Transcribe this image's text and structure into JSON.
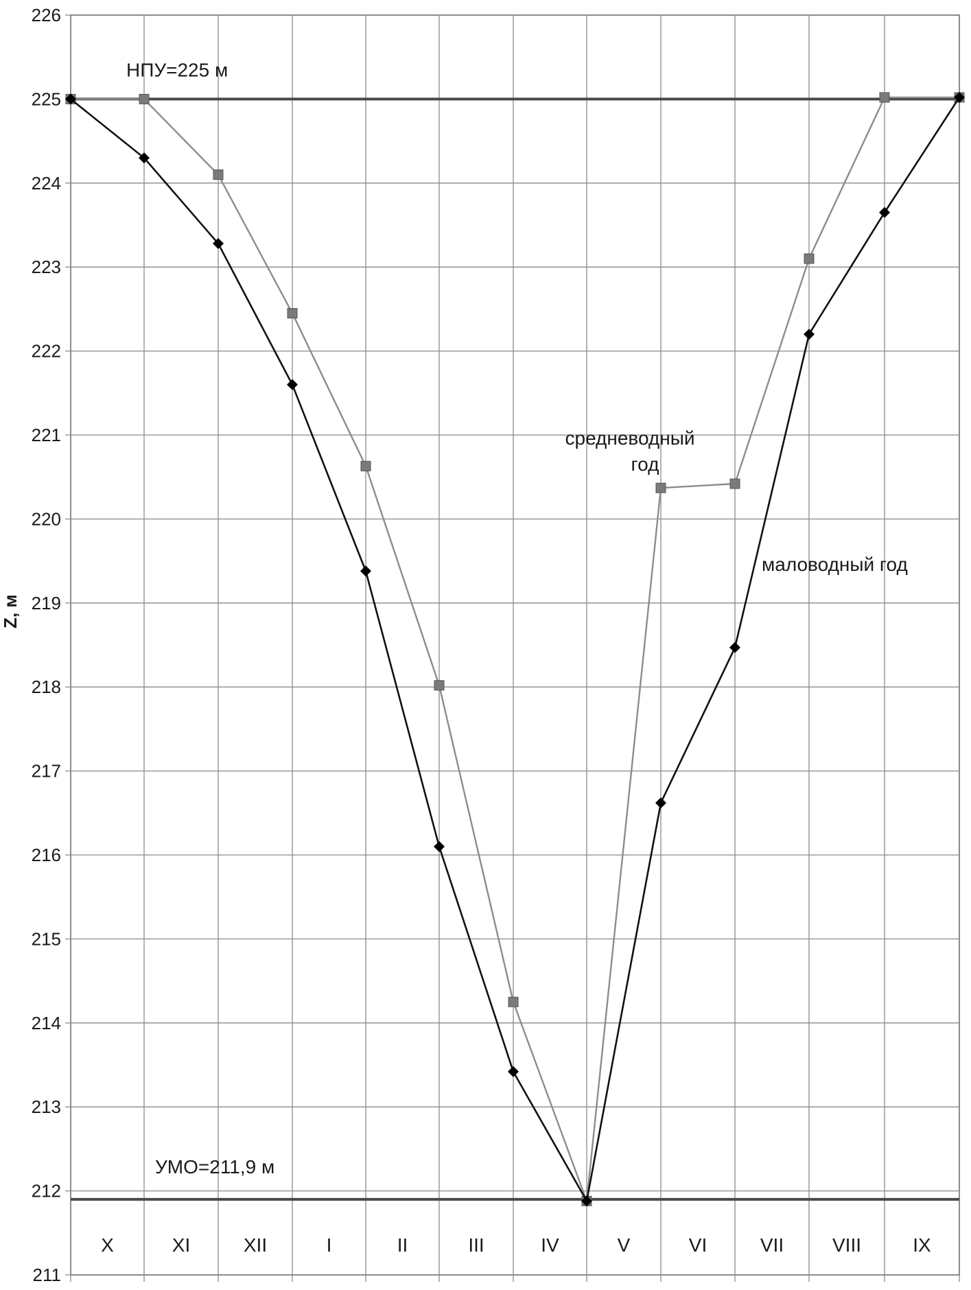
{
  "chart_data": {
    "type": "line",
    "ylabel": "Z, м",
    "ylim": [
      211,
      226
    ],
    "y_ticks": [
      "211",
      "212",
      "213",
      "214",
      "215",
      "216",
      "217",
      "218",
      "219",
      "220",
      "221",
      "222",
      "223",
      "224",
      "225",
      "226"
    ],
    "months": [
      "X",
      "XI",
      "XII",
      "I",
      "II",
      "III",
      "IV",
      "V",
      "VI",
      "VII",
      "VIII",
      "IX"
    ],
    "grid": true,
    "reference_lines": [
      {
        "label": "НПУ=225 м",
        "value": 225
      },
      {
        "label": "УМО=211,9 м",
        "value": 211.9
      }
    ],
    "series": [
      {
        "name": "средневодный год",
        "label_lines": [
          "средневодный",
          "год"
        ],
        "marker": "square",
        "color": "#8c8c8c",
        "marker_color": "#7a7a7a",
        "x": [
          0,
          1,
          2,
          3,
          4,
          5,
          6,
          7,
          8,
          9,
          10,
          11,
          12
        ],
        "values": [
          225.0,
          225.0,
          224.1,
          222.45,
          220.63,
          218.02,
          214.25,
          211.88,
          220.37,
          220.42,
          223.1,
          225.02,
          225.02
        ]
      },
      {
        "name": "маловодный год",
        "marker": "diamond",
        "color": "#111111",
        "marker_color": "#000000",
        "x": [
          0,
          1,
          2,
          3,
          4,
          5,
          6,
          7,
          8,
          9,
          10,
          11,
          12
        ],
        "values": [
          225.0,
          224.3,
          223.28,
          221.6,
          219.38,
          216.1,
          213.42,
          211.88,
          216.62,
          218.47,
          222.2,
          223.65,
          225.02
        ]
      }
    ]
  }
}
